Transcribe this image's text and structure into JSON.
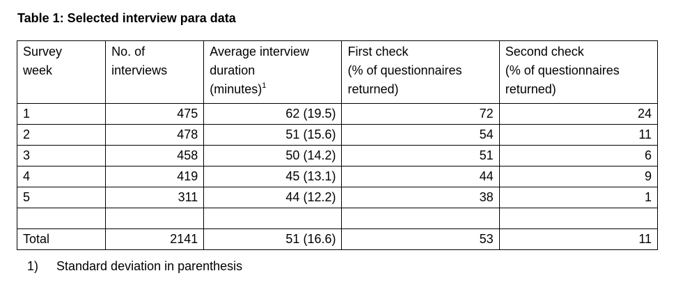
{
  "title": "Table 1: Selected interview para data",
  "headers": {
    "week_l1": "Survey",
    "week_l2": "week",
    "n_l1": "No. of",
    "n_l2": "interviews",
    "dur_l1": "Average interview",
    "dur_l2": "duration",
    "dur_l3": "(minutes)",
    "dur_sup": "1",
    "fc_l1": "First check",
    "fc_l2": "(% of questionnaires",
    "fc_l3": "returned)",
    "sc_l1": "Second check",
    "sc_l2": "(% of questionnaires",
    "sc_l3": "returned)"
  },
  "rows": [
    {
      "week": "1",
      "interviews": "475",
      "duration": "62 (19.5)",
      "first": "72",
      "second": "24"
    },
    {
      "week": "2",
      "interviews": "478",
      "duration": "51 (15.6)",
      "first": "54",
      "second": "11"
    },
    {
      "week": "3",
      "interviews": "458",
      "duration": "50 (14.2)",
      "first": "51",
      "second": "6"
    },
    {
      "week": "4",
      "interviews": "419",
      "duration": "45 (13.1)",
      "first": "44",
      "second": "9"
    },
    {
      "week": "5",
      "interviews": "311",
      "duration": "44 (12.2)",
      "first": "38",
      "second": "1"
    }
  ],
  "total": {
    "label": "Total",
    "interviews": "2141",
    "duration": "51 (16.6)",
    "first": "53",
    "second": "11"
  },
  "footnote": {
    "marker": "1)",
    "text": "Standard deviation in parenthesis"
  }
}
